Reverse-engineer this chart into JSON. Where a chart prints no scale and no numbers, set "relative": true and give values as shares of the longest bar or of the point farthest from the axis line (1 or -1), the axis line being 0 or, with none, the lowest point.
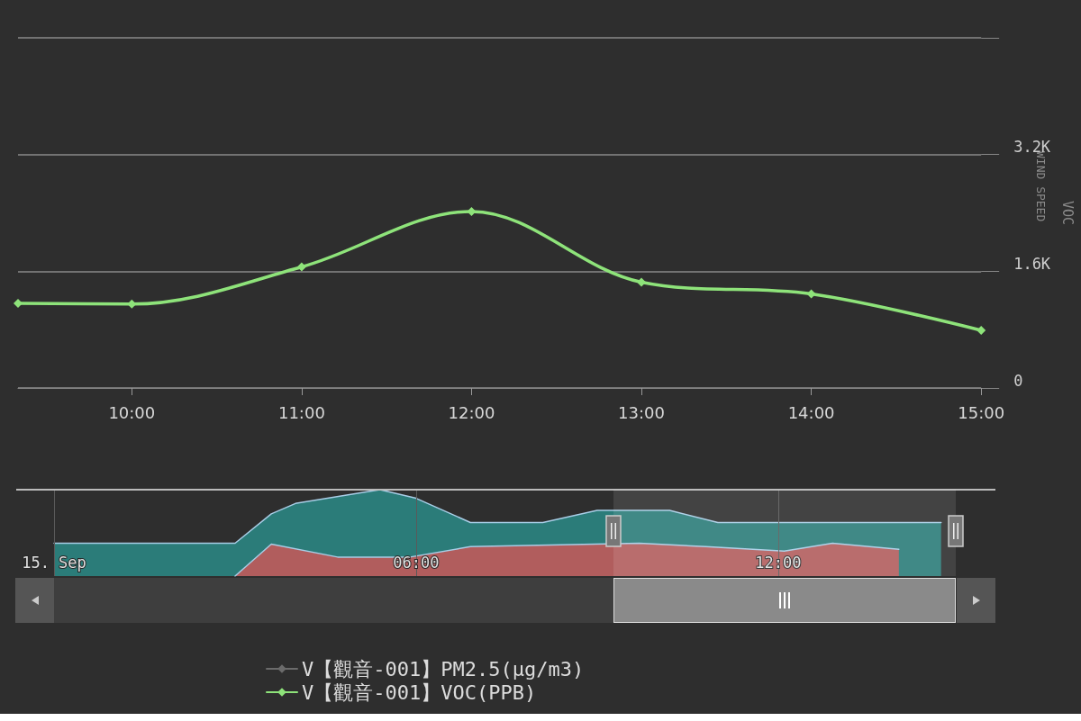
{
  "chart_data": [
    {
      "type": "line",
      "ylabel": "VOC",
      "annotations": [
        "WIND SPEED"
      ],
      "xlim": [
        9.33,
        15
      ],
      "xticks": [
        {
          "value": 10,
          "label": "10:00"
        },
        {
          "value": 11,
          "label": "11:00"
        },
        {
          "value": 12,
          "label": "12:00"
        },
        {
          "value": 13,
          "label": "13:00"
        },
        {
          "value": 14,
          "label": "14:00"
        },
        {
          "value": 15,
          "label": "15:00"
        }
      ],
      "ylim": [
        0,
        4800
      ],
      "yticks": [
        0,
        {
          "value": 1600,
          "label": "1.6K"
        },
        {
          "value": 3200,
          "label": "3.2K"
        },
        {
          "value": 4800,
          "label": null
        }
      ],
      "x": [
        9.33,
        10,
        11,
        12,
        13,
        14,
        15
      ],
      "series": [
        {
          "name": "V【觀音-001】PM2.5(μg/m3)",
          "color": "#6b6b6b",
          "values": [
            null,
            null,
            null,
            null,
            null,
            null,
            null
          ]
        },
        {
          "name": "V【觀音-001】VOC(PPB)",
          "color": "#8ee37a",
          "values": [
            1160,
            1150,
            1660,
            2420,
            1450,
            1290,
            790
          ]
        }
      ],
      "grid": "y",
      "legend": "bottom",
      "marker": "diamond",
      "line_style": "solid"
    },
    {
      "type": "area",
      "relative": true,
      "xlim": [
        0,
        15.6
      ],
      "xticks": [
        {
          "value": 0,
          "label": "15. Sep"
        },
        {
          "value": 6,
          "label": "06:00"
        },
        {
          "value": 12,
          "label": "12:00"
        }
      ],
      "grid": "x",
      "series": [
        {
          "color": "#2a8a86",
          "x": [
            0,
            3,
            3.6,
            4,
            5.4,
            6,
            6.9,
            8.1,
            9,
            10.2,
            11,
            14.7
          ],
          "values": [
            0.38,
            0.38,
            0.72,
            0.84,
            1,
            0.9,
            0.62,
            0.62,
            0.76,
            0.76,
            0.62,
            0.62
          ]
        },
        {
          "color": "#c95858",
          "x": [
            3,
            3.6,
            4.7,
            5.9,
            6.9,
            9.7,
            10.8,
            12.1,
            12.9,
            14
          ],
          "values": [
            0,
            0.37,
            0.22,
            0.22,
            0.34,
            0.38,
            0.34,
            0.29,
            0.38,
            0.31
          ]
        }
      ]
    }
  ]
}
